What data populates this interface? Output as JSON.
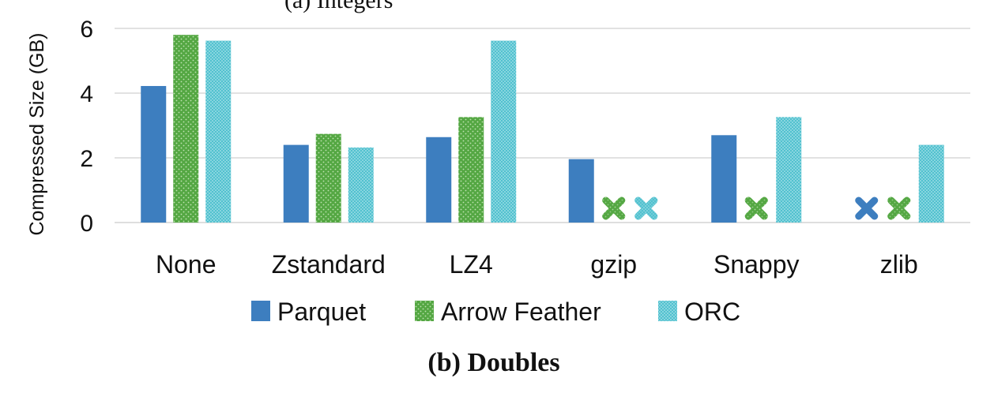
{
  "page": {
    "top_title_partial": "(a) Integers",
    "caption": "(b) Doubles"
  },
  "chart_data": {
    "type": "bar",
    "title": "",
    "xlabel": "",
    "ylabel": "Compressed Size (GB)",
    "ylim": [
      0,
      6
    ],
    "yticks": [
      0,
      2,
      4,
      6
    ],
    "grid": true,
    "legend_position": "bottom",
    "categories": [
      "None",
      "Zstandard",
      "LZ4",
      "gzip",
      "Snappy",
      "zlib"
    ],
    "series": [
      {
        "name": "Parquet",
        "color": "#3d7ebf",
        "pattern": "solid",
        "values": [
          4.22,
          2.4,
          2.64,
          1.96,
          2.7,
          null
        ]
      },
      {
        "name": "Arrow Feather",
        "color": "#54a743",
        "pattern": "dots",
        "values": [
          5.8,
          2.74,
          3.26,
          null,
          null,
          null
        ]
      },
      {
        "name": "ORC",
        "color": "#52c1cf",
        "pattern": "dense-dots",
        "values": [
          5.62,
          2.32,
          5.62,
          null,
          3.26,
          2.4
        ]
      }
    ],
    "unsupported_marker": "x"
  }
}
